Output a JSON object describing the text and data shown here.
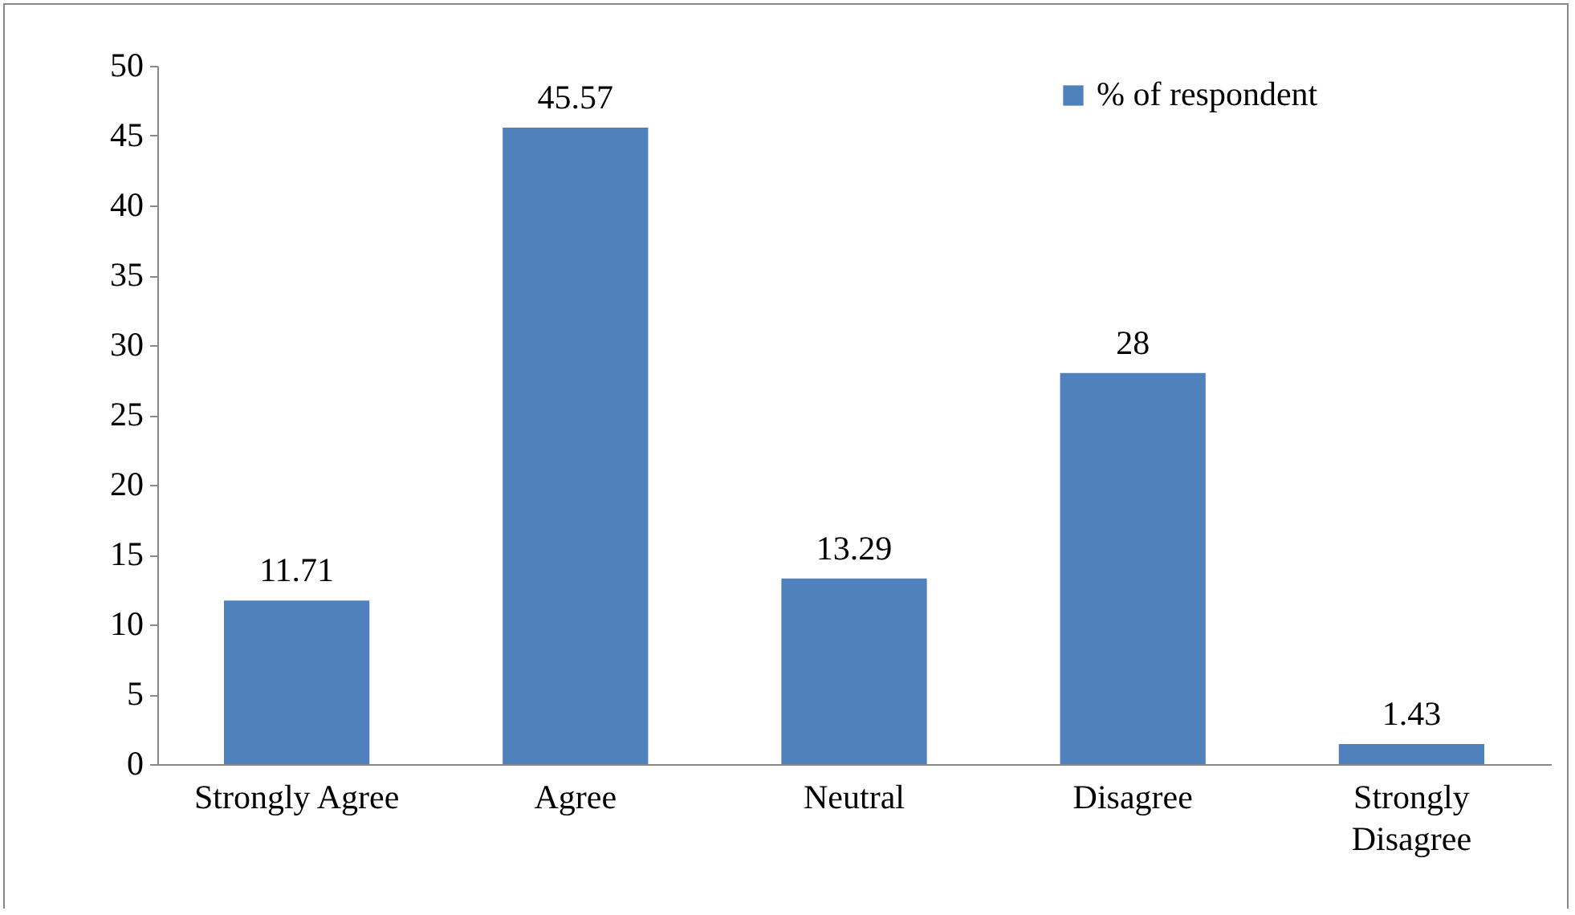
{
  "chart_data": {
    "type": "bar",
    "categories": [
      "Strongly Agree",
      "Agree",
      "Neutral",
      "Disagree",
      "Strongly Disagree"
    ],
    "series": [
      {
        "name": "% of respondent",
        "color": "#4f81bd",
        "values": [
          11.71,
          45.57,
          13.29,
          28,
          1.43
        ]
      }
    ],
    "ylim": [
      0,
      50
    ],
    "yticks": [
      0,
      5,
      10,
      15,
      20,
      25,
      30,
      35,
      40,
      45,
      50
    ],
    "data_labels": true,
    "legend": "top right",
    "grid": false
  }
}
